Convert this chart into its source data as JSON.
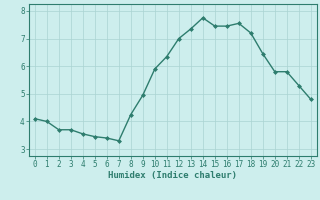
{
  "x": [
    0,
    1,
    2,
    3,
    4,
    5,
    6,
    7,
    8,
    9,
    10,
    11,
    12,
    13,
    14,
    15,
    16,
    17,
    18,
    19,
    20,
    21,
    22,
    23
  ],
  "y": [
    4.1,
    4.0,
    3.7,
    3.7,
    3.55,
    3.45,
    3.4,
    3.3,
    4.25,
    4.95,
    5.9,
    6.35,
    7.0,
    7.35,
    7.75,
    7.45,
    7.45,
    7.55,
    7.2,
    6.45,
    5.8,
    5.8,
    5.3,
    4.8
  ],
  "line_color": "#2e7d6e",
  "marker": "D",
  "marker_size": 2,
  "bg_color": "#cdeeed",
  "grid_color": "#aad4d2",
  "xlabel": "Humidex (Indice chaleur)",
  "xlim": [
    -0.5,
    23.5
  ],
  "ylim": [
    2.75,
    8.25
  ],
  "yticks": [
    3,
    4,
    5,
    6,
    7,
    8
  ],
  "xticks": [
    0,
    1,
    2,
    3,
    4,
    5,
    6,
    7,
    8,
    9,
    10,
    11,
    12,
    13,
    14,
    15,
    16,
    17,
    18,
    19,
    20,
    21,
    22,
    23
  ],
  "tick_fontsize": 5.5,
  "xlabel_fontsize": 6.5,
  "linewidth": 1.0,
  "spine_color": "#2e7d6e"
}
